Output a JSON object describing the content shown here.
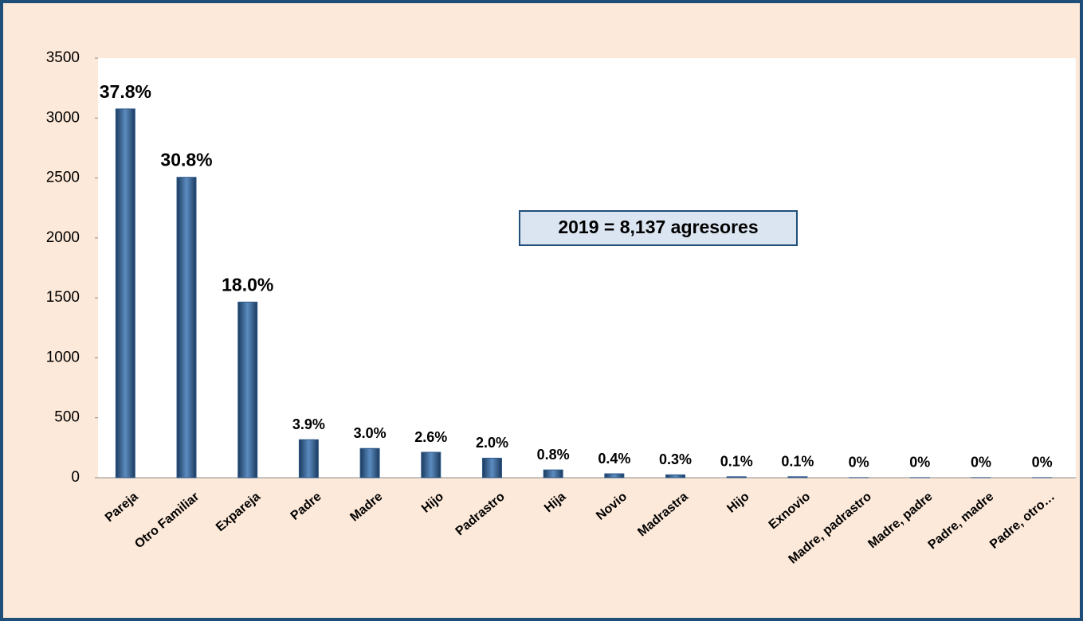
{
  "chart_data": {
    "type": "bar",
    "annotation": "2019 = 8,137  agresores",
    "categories": [
      "Pareja",
      "Otro Familiar",
      "Expareja",
      "Padre",
      "Madre",
      "Hijo",
      "Padrastro",
      "Hija",
      "Novio",
      "Madrastra",
      "Hijo",
      "Exnovio",
      "Madre, padrastro",
      "Madre, padre",
      "Padre, madre",
      "Padre, otro…"
    ],
    "values": [
      3076,
      2506,
      1465,
      317,
      244,
      212,
      163,
      65,
      33,
      24,
      8,
      8,
      1,
      1,
      1,
      1
    ],
    "value_labels": [
      "37.8%",
      "30.8%",
      "18.0%",
      "3.9%",
      "3.0%",
      "2.6%",
      "2.0%",
      "0.8%",
      "0.4%",
      "0.3%",
      "0.1%",
      "0.1%",
      "0%",
      "0%",
      "0%",
      "0%"
    ],
    "color": "#2e5a8a",
    "ylim": [
      0,
      3500
    ],
    "yticks": [
      0,
      500,
      1000,
      1500,
      2000,
      2500,
      3000,
      3500
    ]
  }
}
